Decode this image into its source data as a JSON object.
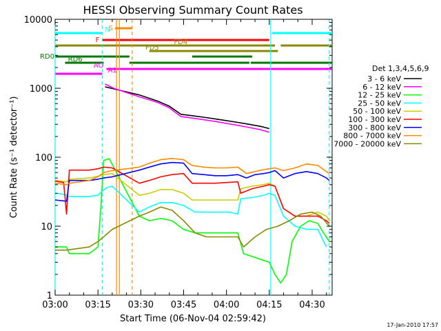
{
  "chart_data": {
    "type": "line",
    "title": "HESSI Observing Summary Count Rates",
    "xlabel": "Start Time (06-Nov-04 02:59:42)",
    "ylabel": "Count Rate (s⁻¹ detector⁻¹)",
    "yscale": "log",
    "ylim": [
      1,
      10000
    ],
    "xlim_minutes": [
      0,
      97
    ],
    "x_ticks": [
      {
        "t": 0,
        "label": "03:00"
      },
      {
        "t": 15,
        "label": "03:15"
      },
      {
        "t": 30,
        "label": "03:30"
      },
      {
        "t": 45,
        "label": "03:45"
      },
      {
        "t": 60,
        "label": "04:00"
      },
      {
        "t": 75,
        "label": "04:15"
      },
      {
        "t": 90,
        "label": "04:30"
      }
    ],
    "y_ticks": [
      {
        "v": 1,
        "label": "1"
      },
      {
        "v": 10,
        "label": "10"
      },
      {
        "v": 100,
        "label": "100"
      },
      {
        "v": 1000,
        "label": "1000"
      },
      {
        "v": 10000,
        "label": "10000"
      }
    ],
    "legend_title": "Det 1,3,4,5,6,9",
    "legend_position": "right",
    "series": [
      {
        "name": "3 - 6 keV",
        "color": "#000000",
        "points": [
          [
            17.5,
            1050
          ],
          [
            20.5,
            980
          ],
          [
            29.5,
            800
          ],
          [
            32,
            740
          ],
          [
            36,
            650
          ],
          [
            40,
            550
          ],
          [
            44,
            420
          ],
          [
            48,
            400
          ],
          [
            52,
            380
          ],
          [
            56,
            360
          ],
          [
            60,
            340
          ],
          [
            64,
            320
          ],
          [
            68,
            300
          ],
          [
            72,
            280
          ],
          [
            75,
            260
          ]
        ]
      },
      {
        "name": "6 - 12 keV",
        "color": "#ff00ff",
        "points": [
          [
            17.5,
            1150
          ],
          [
            20.5,
            1000
          ],
          [
            29.5,
            750
          ],
          [
            32,
            700
          ],
          [
            36,
            620
          ],
          [
            40,
            520
          ],
          [
            44,
            390
          ],
          [
            48,
            370
          ],
          [
            52,
            350
          ],
          [
            56,
            330
          ],
          [
            60,
            310
          ],
          [
            64,
            290
          ],
          [
            68,
            270
          ],
          [
            72,
            250
          ],
          [
            75,
            230
          ]
        ]
      },
      {
        "name": "12 - 25 keV",
        "color": "#00ff00",
        "points": [
          [
            0,
            5
          ],
          [
            4,
            5
          ],
          [
            5,
            4
          ],
          [
            12,
            4
          ],
          [
            15,
            5
          ],
          [
            16,
            18
          ],
          [
            17,
            90
          ],
          [
            19,
            95
          ],
          [
            29.5,
            14
          ],
          [
            33,
            12
          ],
          [
            37,
            13
          ],
          [
            41,
            12
          ],
          [
            45,
            9
          ],
          [
            49,
            8
          ],
          [
            53,
            8
          ],
          [
            57,
            8
          ],
          [
            61,
            8
          ],
          [
            64,
            8
          ],
          [
            66,
            4
          ],
          [
            75,
            3
          ],
          [
            77,
            2
          ],
          [
            79,
            1.5
          ],
          [
            81,
            2
          ],
          [
            83,
            6
          ],
          [
            86,
            10
          ],
          [
            89,
            12
          ],
          [
            92,
            11
          ],
          [
            94,
            8
          ],
          [
            96,
            6
          ]
        ]
      },
      {
        "name": "25 - 50 keV",
        "color": "#00ffff",
        "points": [
          [
            0,
            30
          ],
          [
            3,
            29
          ],
          [
            5,
            27
          ],
          [
            12,
            27
          ],
          [
            15,
            28
          ],
          [
            16,
            31
          ],
          [
            18,
            36
          ],
          [
            20,
            38
          ],
          [
            29.5,
            16
          ],
          [
            33,
            19
          ],
          [
            37,
            22
          ],
          [
            41,
            22
          ],
          [
            45,
            20
          ],
          [
            49,
            16
          ],
          [
            53,
            16
          ],
          [
            57,
            16
          ],
          [
            61,
            16
          ],
          [
            64,
            15
          ],
          [
            65,
            25
          ],
          [
            69,
            26
          ],
          [
            73,
            28
          ],
          [
            75,
            30
          ],
          [
            77,
            28
          ],
          [
            80,
            14
          ],
          [
            84,
            10
          ],
          [
            88,
            9
          ],
          [
            92,
            9
          ],
          [
            95,
            5
          ]
        ]
      },
      {
        "name": "50 - 100 keV",
        "color": "#cccc00",
        "points": [
          [
            0,
            46
          ],
          [
            4,
            44
          ],
          [
            5,
            48
          ],
          [
            12,
            50
          ],
          [
            15,
            53
          ],
          [
            17,
            56
          ],
          [
            20,
            58
          ],
          [
            29.5,
            28
          ],
          [
            33,
            30
          ],
          [
            37,
            34
          ],
          [
            41,
            34
          ],
          [
            45,
            30
          ],
          [
            48,
            24
          ],
          [
            52,
            24
          ],
          [
            56,
            24
          ],
          [
            60,
            24
          ],
          [
            64,
            24
          ],
          [
            65,
            35
          ],
          [
            69,
            38
          ],
          [
            73,
            40
          ],
          [
            75,
            42
          ],
          [
            77,
            38
          ],
          [
            80,
            18
          ],
          [
            84,
            14
          ],
          [
            88,
            14
          ],
          [
            92,
            16
          ],
          [
            95,
            14
          ],
          [
            96,
            12
          ]
        ]
      },
      {
        "name": "100 - 300 keV",
        "color": "#ff0000",
        "points": [
          [
            0,
            45
          ],
          [
            3,
            43
          ],
          [
            4,
            15
          ],
          [
            5,
            65
          ],
          [
            12,
            65
          ],
          [
            15,
            68
          ],
          [
            17,
            72
          ],
          [
            20,
            70
          ],
          [
            29.5,
            42
          ],
          [
            33,
            46
          ],
          [
            37,
            52
          ],
          [
            41,
            56
          ],
          [
            45,
            58
          ],
          [
            48,
            42
          ],
          [
            52,
            42
          ],
          [
            56,
            42
          ],
          [
            60,
            43
          ],
          [
            64,
            44
          ],
          [
            65,
            30
          ],
          [
            69,
            35
          ],
          [
            73,
            38
          ],
          [
            75,
            40
          ],
          [
            77,
            38
          ],
          [
            80,
            18
          ],
          [
            84,
            14
          ],
          [
            88,
            14
          ],
          [
            92,
            14
          ],
          [
            95,
            12
          ],
          [
            96,
            11
          ]
        ]
      },
      {
        "name": "300 - 800 keV",
        "color": "#0000ff",
        "points": [
          [
            0,
            24
          ],
          [
            4,
            23
          ],
          [
            5,
            46
          ],
          [
            12,
            46
          ],
          [
            15,
            48
          ],
          [
            17,
            50
          ],
          [
            20,
            52
          ],
          [
            29.5,
            65
          ],
          [
            33,
            72
          ],
          [
            37,
            80
          ],
          [
            41,
            84
          ],
          [
            45,
            82
          ],
          [
            48,
            58
          ],
          [
            52,
            56
          ],
          [
            56,
            54
          ],
          [
            60,
            54
          ],
          [
            64,
            56
          ],
          [
            67,
            50
          ],
          [
            70,
            56
          ],
          [
            73,
            58
          ],
          [
            75,
            60
          ],
          [
            77,
            64
          ],
          [
            80,
            50
          ],
          [
            84,
            58
          ],
          [
            88,
            62
          ],
          [
            92,
            58
          ],
          [
            95,
            50
          ],
          [
            96,
            46
          ]
        ]
      },
      {
        "name": "800 - 7000 keV",
        "color": "#ff8800",
        "points": [
          [
            0,
            42
          ],
          [
            4,
            40
          ],
          [
            5,
            42
          ],
          [
            12,
            46
          ],
          [
            15,
            52
          ],
          [
            17,
            60
          ],
          [
            20,
            64
          ],
          [
            29.5,
            72
          ],
          [
            33,
            82
          ],
          [
            37,
            92
          ],
          [
            41,
            96
          ],
          [
            45,
            92
          ],
          [
            48,
            76
          ],
          [
            52,
            72
          ],
          [
            56,
            70
          ],
          [
            60,
            70
          ],
          [
            64,
            72
          ],
          [
            67,
            58
          ],
          [
            70,
            62
          ],
          [
            73,
            66
          ],
          [
            75,
            68
          ],
          [
            77,
            70
          ],
          [
            80,
            64
          ],
          [
            84,
            70
          ],
          [
            88,
            80
          ],
          [
            92,
            76
          ],
          [
            95,
            62
          ],
          [
            96,
            58
          ]
        ]
      },
      {
        "name": "7000 - 20000 keV",
        "color": "#888800",
        "points": [
          [
            0,
            4.5
          ],
          [
            4,
            4.5
          ],
          [
            12,
            5
          ],
          [
            15,
            6
          ],
          [
            17,
            7
          ],
          [
            20,
            9
          ],
          [
            29.5,
            14
          ],
          [
            33,
            16
          ],
          [
            37,
            19
          ],
          [
            41,
            17
          ],
          [
            45,
            12
          ],
          [
            49,
            8
          ],
          [
            53,
            7
          ],
          [
            57,
            7
          ],
          [
            61,
            7
          ],
          [
            64,
            7
          ],
          [
            66,
            5
          ],
          [
            70,
            7
          ],
          [
            74,
            9
          ],
          [
            78,
            10
          ],
          [
            82,
            12
          ],
          [
            86,
            15
          ],
          [
            90,
            16
          ],
          [
            93,
            14
          ],
          [
            96,
            10
          ]
        ]
      }
    ],
    "flag_bars": [
      {
        "label": "S",
        "color": "#ff8800",
        "row": 0,
        "segments": [
          [
            21,
            27
          ]
        ]
      },
      {
        "label": "N",
        "color": "#00ffff",
        "row": 1,
        "segments": [
          [
            0,
            16.5
          ],
          [
            76,
            97
          ]
        ]
      },
      {
        "label": "F",
        "color": "#ff0000",
        "row": 2,
        "segments": [
          [
            16.5,
            75
          ]
        ]
      },
      {
        "label": "FD4",
        "color": "#888800",
        "row": 3,
        "segments": [
          [
            0,
            77
          ],
          [
            79,
            97
          ]
        ]
      },
      {
        "label": "FD5",
        "color": "#888800",
        "row": 4,
        "segments": [
          [
            33,
            78
          ]
        ]
      },
      {
        "label": "RD0",
        "color": "#007700",
        "row": 5,
        "segments": [
          [
            0,
            26
          ],
          [
            48,
            69
          ]
        ]
      },
      {
        "label": "RD6",
        "color": "#007700",
        "row": 6,
        "segments": [
          [
            3.5,
            17
          ],
          [
            26,
            68
          ],
          [
            68.5,
            97
          ]
        ]
      },
      {
        "label": "AO",
        "color": "#ff00ff",
        "row": 7,
        "segments": [
          [
            18,
            97
          ]
        ]
      },
      {
        "label": "A1",
        "color": "#ff00ff",
        "row": 8,
        "segments": [
          [
            0,
            16.5
          ]
        ]
      }
    ],
    "vertical_markers": [
      {
        "t": 0,
        "color": "#00ffff",
        "style": "solid"
      },
      {
        "t": 16.5,
        "color": "#00ffff",
        "style": "dashed"
      },
      {
        "t": 21.5,
        "color": "#ff8800",
        "style": "solid"
      },
      {
        "t": 22.5,
        "color": "#ff8800",
        "style": "solid"
      },
      {
        "t": 27,
        "color": "#ff8800",
        "style": "dashed"
      },
      {
        "t": 75.5,
        "color": "#00ffff",
        "style": "solid"
      },
      {
        "t": 96,
        "color": "#00ffff",
        "style": "dashed"
      }
    ]
  },
  "footer": {
    "timestamp": "17-Jan-2010 17:57"
  }
}
